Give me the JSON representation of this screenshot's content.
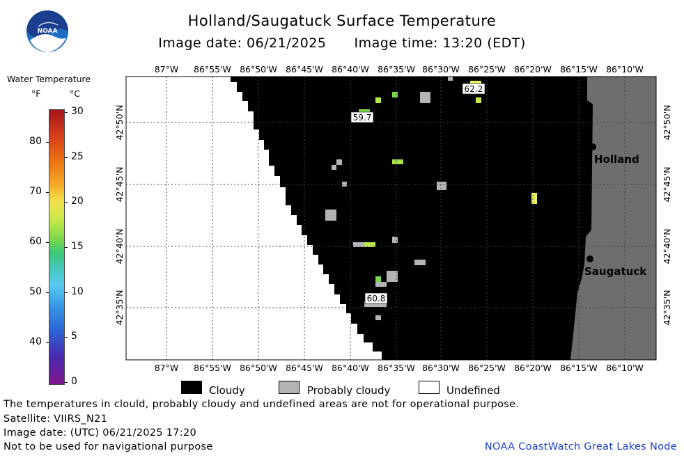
{
  "header": {
    "title": "Holland/Saugatuck Surface Temperature",
    "image_date": "Image date: 06/21/2025",
    "image_time": "Image time: 13:20 (EDT)"
  },
  "logo": {
    "text": "NOAA",
    "icon": "noaa-logo-icon",
    "color": "#1e6fc4"
  },
  "legend": {
    "title": "Water Temperature",
    "unit_f": "°F",
    "unit_c": "°C",
    "ticks_f": [
      "80",
      "70",
      "60",
      "50",
      "40"
    ],
    "ticks_c": [
      "30",
      "25",
      "20",
      "15",
      "10",
      "5",
      "0"
    ]
  },
  "map": {
    "lon_labels": [
      "87°W",
      "86°55'W",
      "86°50'W",
      "86°45'W",
      "86°40'W",
      "86°35'W",
      "86°30'W",
      "86°25'W",
      "86°20'W",
      "86°15'W",
      "86°10'W"
    ],
    "lat_labels": [
      "42°50'N",
      "42°45'N",
      "42°40'N",
      "42°35'N"
    ],
    "cities": [
      {
        "name": "Holland"
      },
      {
        "name": "Saugatuck"
      }
    ],
    "temperature_labels": [
      "62.2",
      "59.7",
      "60.8"
    ],
    "colors": {
      "cloudy": "#000000",
      "probably_cloudy": "#b4b4b4",
      "land": "#6e6e6e",
      "undefined": "#ffffff"
    }
  },
  "key": {
    "cloudy": "Cloudy",
    "probably_cloudy": "Probably cloudy",
    "undefined": "Undefined"
  },
  "footer": {
    "note1": "The temperatures in clould, probably cloudy and undefined areas are not for operational purpose.",
    "satellite": "Satellite: VIIRS_N21",
    "utc_date": "Image date: (UTC) 06/21/2025  17:20",
    "navigation": "Not to be used for navigational purpose",
    "credit": "NOAA CoastWatch Great Lakes Node"
  }
}
